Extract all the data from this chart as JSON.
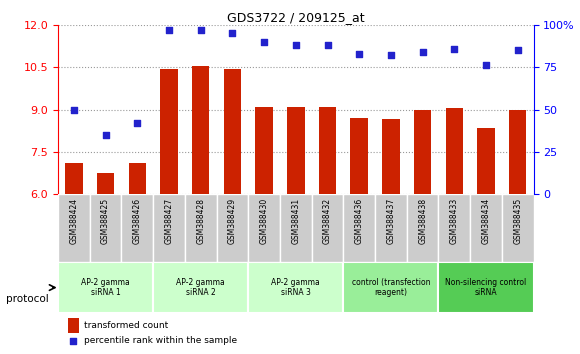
{
  "title": "GDS3722 / 209125_at",
  "samples": [
    "GSM388424",
    "GSM388425",
    "GSM388426",
    "GSM388427",
    "GSM388428",
    "GSM388429",
    "GSM388430",
    "GSM388431",
    "GSM388432",
    "GSM388436",
    "GSM388437",
    "GSM388438",
    "GSM388433",
    "GSM388434",
    "GSM388435"
  ],
  "bar_values": [
    7.1,
    6.75,
    7.1,
    10.45,
    10.55,
    10.45,
    9.1,
    9.1,
    9.1,
    8.7,
    8.65,
    9.0,
    9.05,
    8.35,
    9.0
  ],
  "dot_values": [
    50,
    35,
    42,
    97,
    97,
    95,
    90,
    88,
    88,
    83,
    82,
    84,
    86,
    76,
    85
  ],
  "ylim_left": [
    6,
    12
  ],
  "ylim_right": [
    0,
    100
  ],
  "yticks_left": [
    6,
    7.5,
    9,
    10.5,
    12
  ],
  "yticks_right": [
    0,
    25,
    50,
    75,
    100
  ],
  "bar_color": "#cc2200",
  "dot_color": "#2222cc",
  "groups": [
    {
      "label": "AP-2 gamma\nsiRNA 1",
      "start": 0,
      "end": 3,
      "color": "#ccffcc"
    },
    {
      "label": "AP-2 gamma\nsiRNA 2",
      "start": 3,
      "end": 6,
      "color": "#ccffcc"
    },
    {
      "label": "AP-2 gamma\nsiRNA 3",
      "start": 6,
      "end": 9,
      "color": "#ccffcc"
    },
    {
      "label": "control (transfection\nreagent)",
      "start": 9,
      "end": 12,
      "color": "#99ee99"
    },
    {
      "label": "Non-silencing control\nsiRNA",
      "start": 12,
      "end": 15,
      "color": "#55cc55"
    }
  ],
  "protocol_label": "protocol",
  "legend_bar_label": "transformed count",
  "legend_dot_label": "percentile rank within the sample",
  "sample_bg_color": "#cccccc",
  "grid_color": "#999999"
}
